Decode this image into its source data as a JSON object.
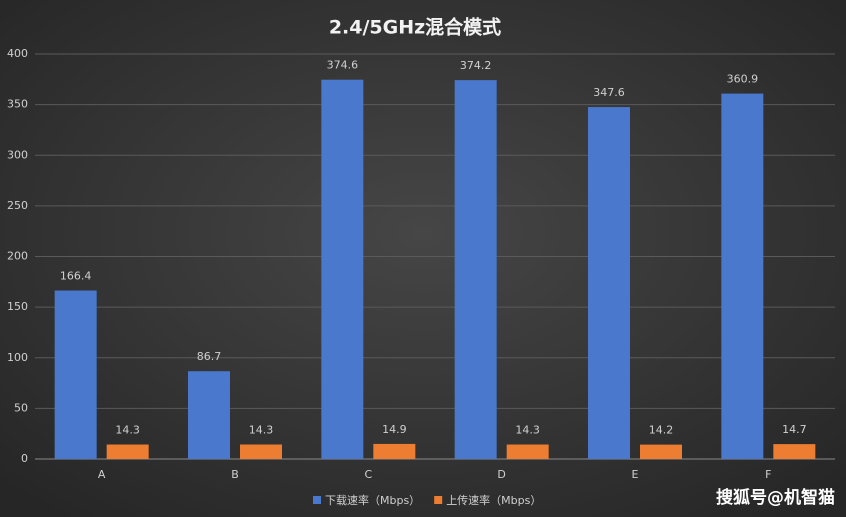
{
  "chart_data": {
    "type": "bar",
    "title": "2.4/5GHz混合模式",
    "categories": [
      "A",
      "B",
      "C",
      "D",
      "E",
      "F"
    ],
    "series": [
      {
        "name": "下载速率（Mbps）",
        "color": "#4a78cc",
        "values": [
          166.4,
          86.7,
          374.6,
          374.2,
          347.6,
          360.9
        ]
      },
      {
        "name": "上传速率（Mbps）",
        "color": "#ed7d31",
        "values": [
          14.3,
          14.3,
          14.9,
          14.3,
          14.2,
          14.7
        ]
      }
    ],
    "ylim": [
      0,
      400
    ],
    "yticks": [
      0,
      50,
      100,
      150,
      200,
      250,
      300,
      350,
      400
    ],
    "grid": true,
    "legend": "bottom",
    "watermark": "搜狐号@机智猫"
  }
}
